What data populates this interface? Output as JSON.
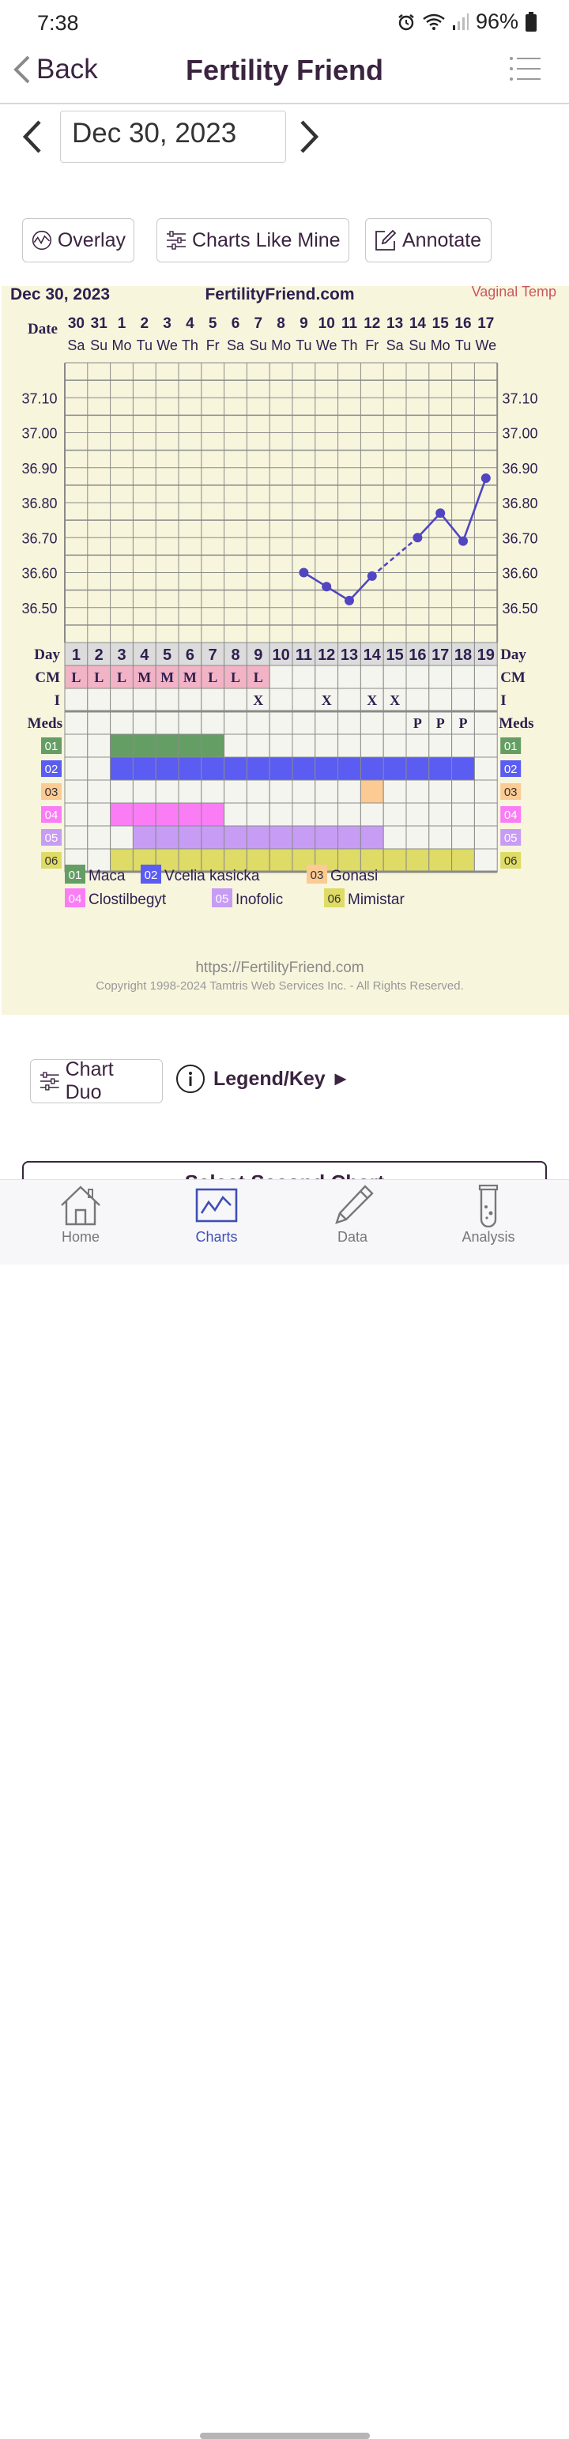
{
  "status": {
    "time": "7:38",
    "battery": "96%"
  },
  "nav": {
    "back": "Back",
    "title": "Fertility Friend"
  },
  "date_selector": {
    "value": "Dec 30, 2023"
  },
  "toolbar": {
    "overlay": "Overlay",
    "charts_like_mine": "Charts Like Mine",
    "annotate": "Annotate"
  },
  "chart": {
    "date": "Dec 30, 2023",
    "site": "FertilityFriend.com",
    "temp_type": "Vaginal Temp",
    "date_label": "Date",
    "dates": [
      "30",
      "31",
      "1",
      "2",
      "3",
      "4",
      "5",
      "6",
      "7",
      "8",
      "9",
      "10",
      "11",
      "12",
      "13",
      "14",
      "15",
      "16",
      "17"
    ],
    "weekdays": [
      "Sa",
      "Su",
      "Mo",
      "Tu",
      "We",
      "Th",
      "Fr",
      "Sa",
      "Su",
      "Mo",
      "Tu",
      "We",
      "Th",
      "Fr",
      "Sa",
      "Su",
      "Mo",
      "Tu",
      "We"
    ],
    "temp_ticks": [
      "37.10",
      "37.00",
      "36.90",
      "36.80",
      "36.70",
      "36.60",
      "36.50"
    ],
    "day_label": "Day",
    "days": [
      "1",
      "2",
      "3",
      "4",
      "5",
      "6",
      "7",
      "8",
      "9",
      "10",
      "11",
      "12",
      "13",
      "14",
      "15",
      "16",
      "17",
      "18",
      "19"
    ],
    "cm_label": "CM",
    "cm": [
      "L",
      "L",
      "L",
      "M",
      "M",
      "M",
      "L",
      "L",
      "L",
      "",
      "",
      "",
      "",
      "",
      "",
      "",
      "",
      "",
      ""
    ],
    "i_label": "I",
    "intercourse": [
      "",
      "",
      "",
      "",
      "",
      "",
      "",
      "",
      "X",
      "",
      "",
      "X",
      "",
      "X",
      "X",
      "",
      "",
      "",
      ""
    ],
    "meds_label": "Meds",
    "meds": [
      "",
      "",
      "",
      "",
      "",
      "",
      "",
      "",
      "",
      "",
      "",
      "",
      "",
      "",
      "",
      "P",
      "P",
      "P",
      ""
    ],
    "med_rows": [
      {
        "code": "01",
        "name": "Maca",
        "color": "#659e65",
        "start": 3,
        "end": 7
      },
      {
        "code": "02",
        "name": "Vcelia kasicka",
        "color": "#5b5cf2",
        "start": 3,
        "end": 18
      },
      {
        "code": "03",
        "name": "Gonasi",
        "color": "#fcca93",
        "start": 14,
        "end": 14
      },
      {
        "code": "04",
        "name": "Clostilbegyt",
        "color": "#fa7df5",
        "start": 3,
        "end": 7
      },
      {
        "code": "05",
        "name": "Inofolic",
        "color": "#c79cf5",
        "start": 4,
        "end": 14
      },
      {
        "code": "06",
        "name": "Mimistar",
        "color": "#dedb66",
        "start": 3,
        "end": 18
      }
    ],
    "footer_url": "https://FertilityFriend.com",
    "copyright": "Copyright 1998-2024 Tamtris Web Services Inc. - All Rights Reserved."
  },
  "chart_data": {
    "type": "line",
    "x": [
      11,
      12,
      13,
      14,
      16,
      17,
      18,
      19
    ],
    "y": [
      36.6,
      36.56,
      36.52,
      36.59,
      36.7,
      36.77,
      36.69,
      36.87
    ],
    "dashed_segments": [
      [
        14,
        16
      ]
    ],
    "ylim": [
      36.4,
      37.2
    ],
    "xlim": [
      1,
      19
    ],
    "color": "#5145c2"
  },
  "bottom": {
    "chart_duo": "Chart Duo",
    "legend_key": "Legend/Key ►",
    "select_second": "Select Second Chart"
  },
  "tabs": [
    {
      "label": "Home"
    },
    {
      "label": "Charts"
    },
    {
      "label": "Data"
    },
    {
      "label": "Analysis"
    }
  ]
}
